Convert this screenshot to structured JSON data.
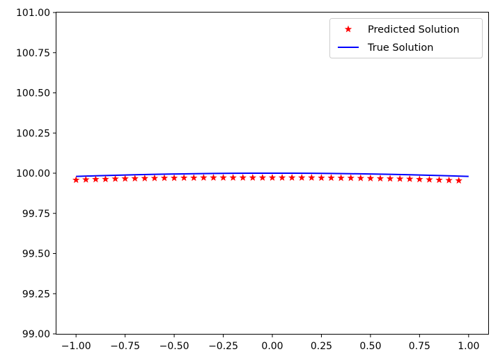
{
  "chart_data": {
    "type": "line",
    "title": "",
    "xlabel": "",
    "ylabel": "",
    "xlim": [
      -1.1,
      1.1
    ],
    "ylim": [
      99.0,
      101.0
    ],
    "xticks": [
      -1.0,
      -0.75,
      -0.5,
      -0.25,
      0.0,
      0.25,
      0.5,
      0.75,
      1.0
    ],
    "xtick_labels": [
      "−1.00",
      "−0.75",
      "−0.50",
      "−0.25",
      "0.00",
      "0.25",
      "0.50",
      "0.75",
      "1.00"
    ],
    "yticks": [
      99.0,
      99.25,
      99.5,
      99.75,
      100.0,
      100.25,
      100.5,
      100.75,
      101.0
    ],
    "ytick_labels": [
      "99.00",
      "99.25",
      "99.50",
      "99.75",
      "100.00",
      "100.25",
      "100.50",
      "100.75",
      "101.00"
    ],
    "grid": false,
    "legend_position": "top-right",
    "series": [
      {
        "name": "Predicted Solution",
        "style": "markers-star",
        "color": "#ff0000",
        "x": [
          -1.0,
          -0.95,
          -0.9,
          -0.85,
          -0.8,
          -0.75,
          -0.7,
          -0.65,
          -0.6,
          -0.55,
          -0.5,
          -0.45,
          -0.4,
          -0.35,
          -0.3,
          -0.25,
          -0.2,
          -0.15,
          -0.1,
          -0.05,
          0.0,
          0.05,
          0.1,
          0.15,
          0.2,
          0.25,
          0.3,
          0.35,
          0.4,
          0.45,
          0.5,
          0.55,
          0.6,
          0.65,
          0.7,
          0.75,
          0.8,
          0.85,
          0.9,
          0.95
        ],
        "y": [
          99.958,
          99.96,
          99.962,
          99.963,
          99.965,
          99.966,
          99.967,
          99.968,
          99.969,
          99.97,
          99.97,
          99.971,
          99.971,
          99.972,
          99.972,
          99.972,
          99.972,
          99.972,
          99.972,
          99.972,
          99.972,
          99.972,
          99.972,
          99.972,
          99.972,
          99.971,
          99.971,
          99.97,
          99.97,
          99.969,
          99.968,
          99.967,
          99.966,
          99.965,
          99.964,
          99.962,
          99.96,
          99.958,
          99.956,
          99.954
        ]
      },
      {
        "name": "True Solution",
        "style": "line",
        "color": "#0000ff",
        "x": [
          -1.0,
          -0.9,
          -0.8,
          -0.7,
          -0.6,
          -0.5,
          -0.4,
          -0.3,
          -0.2,
          -0.1,
          0.0,
          0.1,
          0.2,
          0.3,
          0.4,
          0.5,
          0.6,
          0.7,
          0.8,
          0.9,
          1.0
        ],
        "y": [
          99.98,
          99.9838,
          99.9872,
          99.9902,
          99.9928,
          99.995,
          99.9968,
          99.9982,
          99.9992,
          99.9998,
          100.0,
          99.9998,
          99.9992,
          99.9982,
          99.9968,
          99.995,
          99.9928,
          99.9902,
          99.9872,
          99.9838,
          99.98
        ]
      }
    ]
  }
}
